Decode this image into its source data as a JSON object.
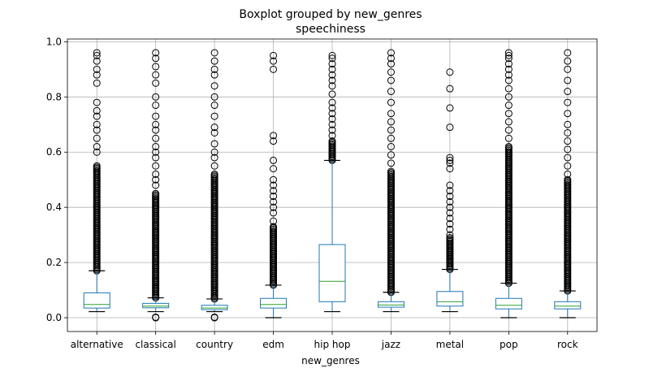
{
  "chart_data": {
    "type": "boxplot",
    "suptitle": "Boxplot grouped by new_genres",
    "title": "speechiness",
    "xlabel": "new_genres",
    "ylabel": "",
    "ylim": [
      -0.05,
      1.01
    ],
    "yticks": [
      "0.0",
      "0.2",
      "0.4",
      "0.6",
      "0.8",
      "1.0"
    ],
    "grid": true,
    "colors": {
      "box": "#1f77b4",
      "median": "#2ca02c",
      "whisker": "#000000",
      "grid": "#b0b0b0"
    },
    "categories": [
      "alternative",
      "classical",
      "country",
      "edm",
      "hip hop",
      "jazz",
      "metal",
      "pop",
      "rock"
    ],
    "boxes": [
      {
        "whislo": 0.022,
        "q1": 0.035,
        "med": 0.048,
        "q3": 0.09,
        "whishi": 0.17,
        "flier_range": [
          0.17,
          0.55
        ],
        "fliers_top": [
          0.6,
          0.62,
          0.65,
          0.68,
          0.7,
          0.73,
          0.75,
          0.78,
          0.85,
          0.88,
          0.9,
          0.93,
          0.95,
          0.96
        ],
        "fliers_low": []
      },
      {
        "whislo": 0.022,
        "q1": 0.036,
        "med": 0.042,
        "q3": 0.052,
        "whishi": 0.072,
        "flier_range": [
          0.072,
          0.45
        ],
        "fliers_top": [
          0.48,
          0.5,
          0.52,
          0.55,
          0.58,
          0.6,
          0.62,
          0.65,
          0.68,
          0.7,
          0.73,
          0.77,
          0.8,
          0.85,
          0.88,
          0.91,
          0.94,
          0.96
        ],
        "fliers_low": [
          0.0,
          0.002
        ]
      },
      {
        "whislo": 0.022,
        "q1": 0.029,
        "med": 0.035,
        "q3": 0.045,
        "whishi": 0.068,
        "flier_range": [
          0.068,
          0.52
        ],
        "fliers_top": [
          0.55,
          0.58,
          0.6,
          0.63,
          0.67,
          0.69,
          0.73,
          0.77,
          0.8,
          0.84,
          0.88,
          0.9,
          0.93,
          0.96
        ],
        "fliers_low": [
          0.0,
          0.002
        ]
      },
      {
        "whislo": 0.0,
        "q1": 0.035,
        "med": 0.048,
        "q3": 0.07,
        "whishi": 0.118,
        "flier_range": [
          0.118,
          0.33
        ],
        "fliers_top": [
          0.35,
          0.38,
          0.4,
          0.42,
          0.44,
          0.46,
          0.48,
          0.5,
          0.54,
          0.57,
          0.64,
          0.66,
          0.9,
          0.93,
          0.95
        ],
        "fliers_low": []
      },
      {
        "whislo": 0.022,
        "q1": 0.058,
        "med": 0.132,
        "q3": 0.265,
        "whishi": 0.57,
        "flier_range": [
          0.57,
          0.64
        ],
        "fliers_top": [
          0.66,
          0.68,
          0.7,
          0.72,
          0.74,
          0.76,
          0.78,
          0.81,
          0.84,
          0.86,
          0.88,
          0.9,
          0.92,
          0.94,
          0.95
        ],
        "fliers_low": []
      },
      {
        "whislo": 0.022,
        "q1": 0.038,
        "med": 0.046,
        "q3": 0.058,
        "whishi": 0.092,
        "flier_range": [
          0.092,
          0.53
        ],
        "fliers_top": [
          0.56,
          0.59,
          0.62,
          0.65,
          0.68,
          0.71,
          0.74,
          0.78,
          0.82,
          0.86,
          0.89,
          0.92,
          0.94,
          0.96
        ],
        "fliers_low": []
      },
      {
        "whislo": 0.022,
        "q1": 0.042,
        "med": 0.058,
        "q3": 0.095,
        "whishi": 0.175,
        "flier_range": [
          0.175,
          0.29
        ],
        "fliers_top": [
          0.3,
          0.32,
          0.34,
          0.36,
          0.38,
          0.4,
          0.42,
          0.44,
          0.46,
          0.48,
          0.54,
          0.56,
          0.57,
          0.58,
          0.69,
          0.76,
          0.83,
          0.89
        ],
        "fliers_low": []
      },
      {
        "whislo": 0.0,
        "q1": 0.032,
        "med": 0.045,
        "q3": 0.07,
        "whishi": 0.125,
        "flier_range": [
          0.125,
          0.62
        ],
        "fliers_top": [
          0.65,
          0.68,
          0.71,
          0.74,
          0.77,
          0.8,
          0.83,
          0.86,
          0.88,
          0.9,
          0.92,
          0.94,
          0.95,
          0.96
        ],
        "fliers_low": []
      },
      {
        "whislo": 0.0,
        "q1": 0.032,
        "med": 0.042,
        "q3": 0.058,
        "whishi": 0.097,
        "flier_range": [
          0.097,
          0.5
        ],
        "fliers_top": [
          0.52,
          0.55,
          0.58,
          0.61,
          0.64,
          0.67,
          0.7,
          0.74,
          0.78,
          0.82,
          0.86,
          0.9,
          0.93,
          0.96
        ],
        "fliers_low": []
      }
    ]
  }
}
